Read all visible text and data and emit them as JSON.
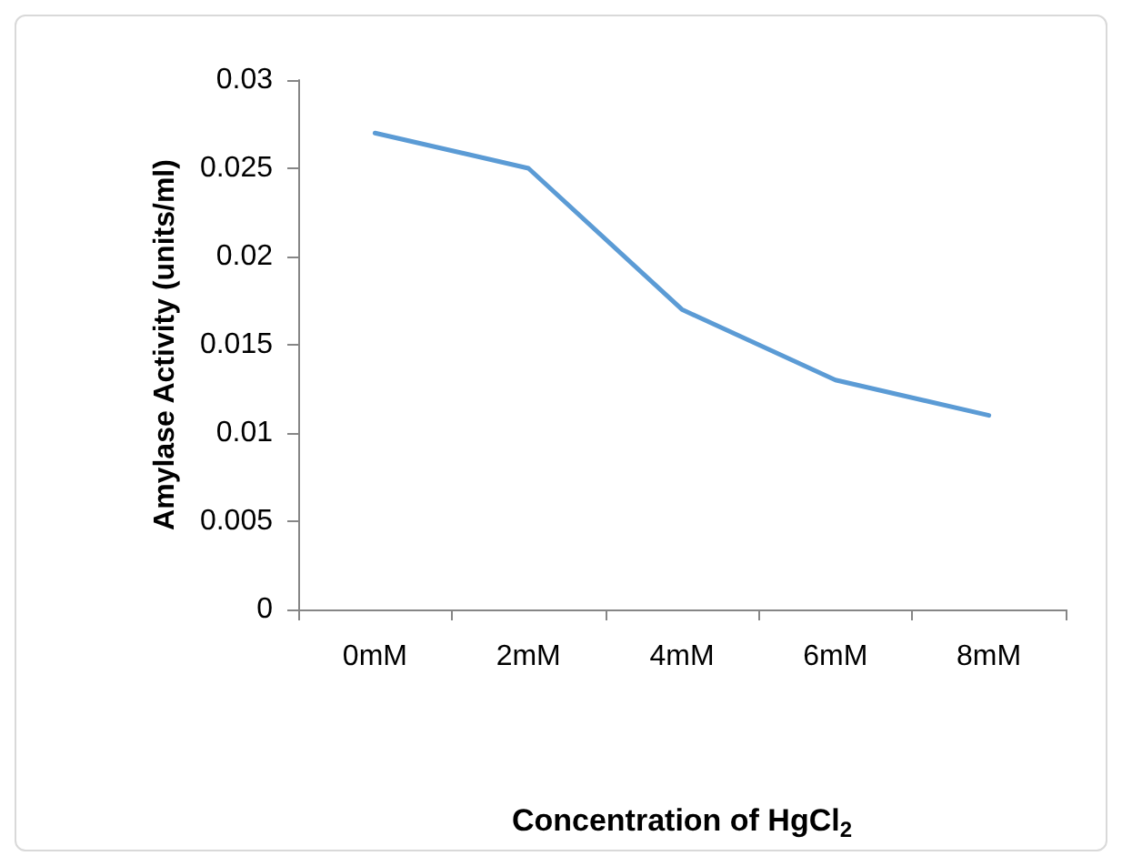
{
  "chart_data": {
    "type": "line",
    "xlabel": "Concentration of HgCl$_{2}$",
    "ylabel": "Amylase Activity (units/ml)",
    "categories": [
      "0mM",
      "2mM",
      "4mM",
      "6mM",
      "8mM"
    ],
    "series": [
      {
        "color": "#5b9bd5",
        "values": [
          0.027,
          0.025,
          0.017,
          0.013,
          0.011
        ]
      }
    ],
    "ylim": [
      0,
      0.03
    ],
    "yticks": [
      0,
      0.005,
      0.01,
      0.015,
      0.02,
      0.025,
      0.03
    ],
    "grid": false,
    "marker": "none",
    "line_style": "solid"
  }
}
